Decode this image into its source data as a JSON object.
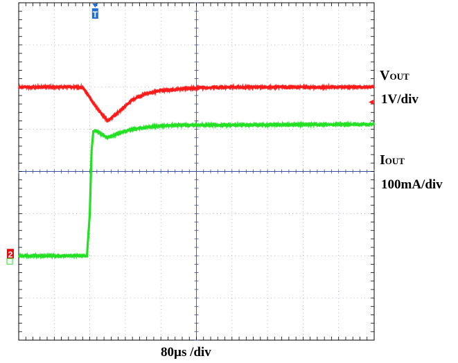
{
  "chart_data": {
    "type": "line",
    "grid": true,
    "xlabel": "80µs /div",
    "divisions": {
      "x": 10,
      "y": 8
    },
    "trigger_marker": {
      "label": "T",
      "color": "#1f6fd6",
      "x_div": 2.15
    },
    "series": [
      {
        "name_main": "V",
        "name_sub": "OUT",
        "scale": "1V/div",
        "color": "#ff1a1a",
        "ref_marker": "◂",
        "x_div": [
          0,
          1.8,
          2.2,
          2.5,
          2.8,
          3.2,
          3.6,
          4.0,
          5.0,
          6.0,
          10
        ],
        "y_div": [
          6.0,
          6.0,
          5.5,
          5.2,
          5.4,
          5.7,
          5.85,
          5.92,
          5.98,
          6.0,
          6.0
        ]
      },
      {
        "name_main": "I",
        "name_sub": "OUT",
        "scale": "100mA/div",
        "color": "#22e022",
        "ref_marker": "2",
        "x_div": [
          0,
          1.92,
          2.0,
          2.05,
          2.1,
          2.2,
          2.5,
          2.8,
          3.2,
          3.8,
          4.5,
          6.0,
          10
        ],
        "y_div": [
          2.0,
          2.0,
          3.0,
          4.5,
          4.95,
          4.95,
          4.8,
          4.9,
          5.0,
          5.07,
          5.1,
          5.1,
          5.12
        ]
      }
    ]
  }
}
